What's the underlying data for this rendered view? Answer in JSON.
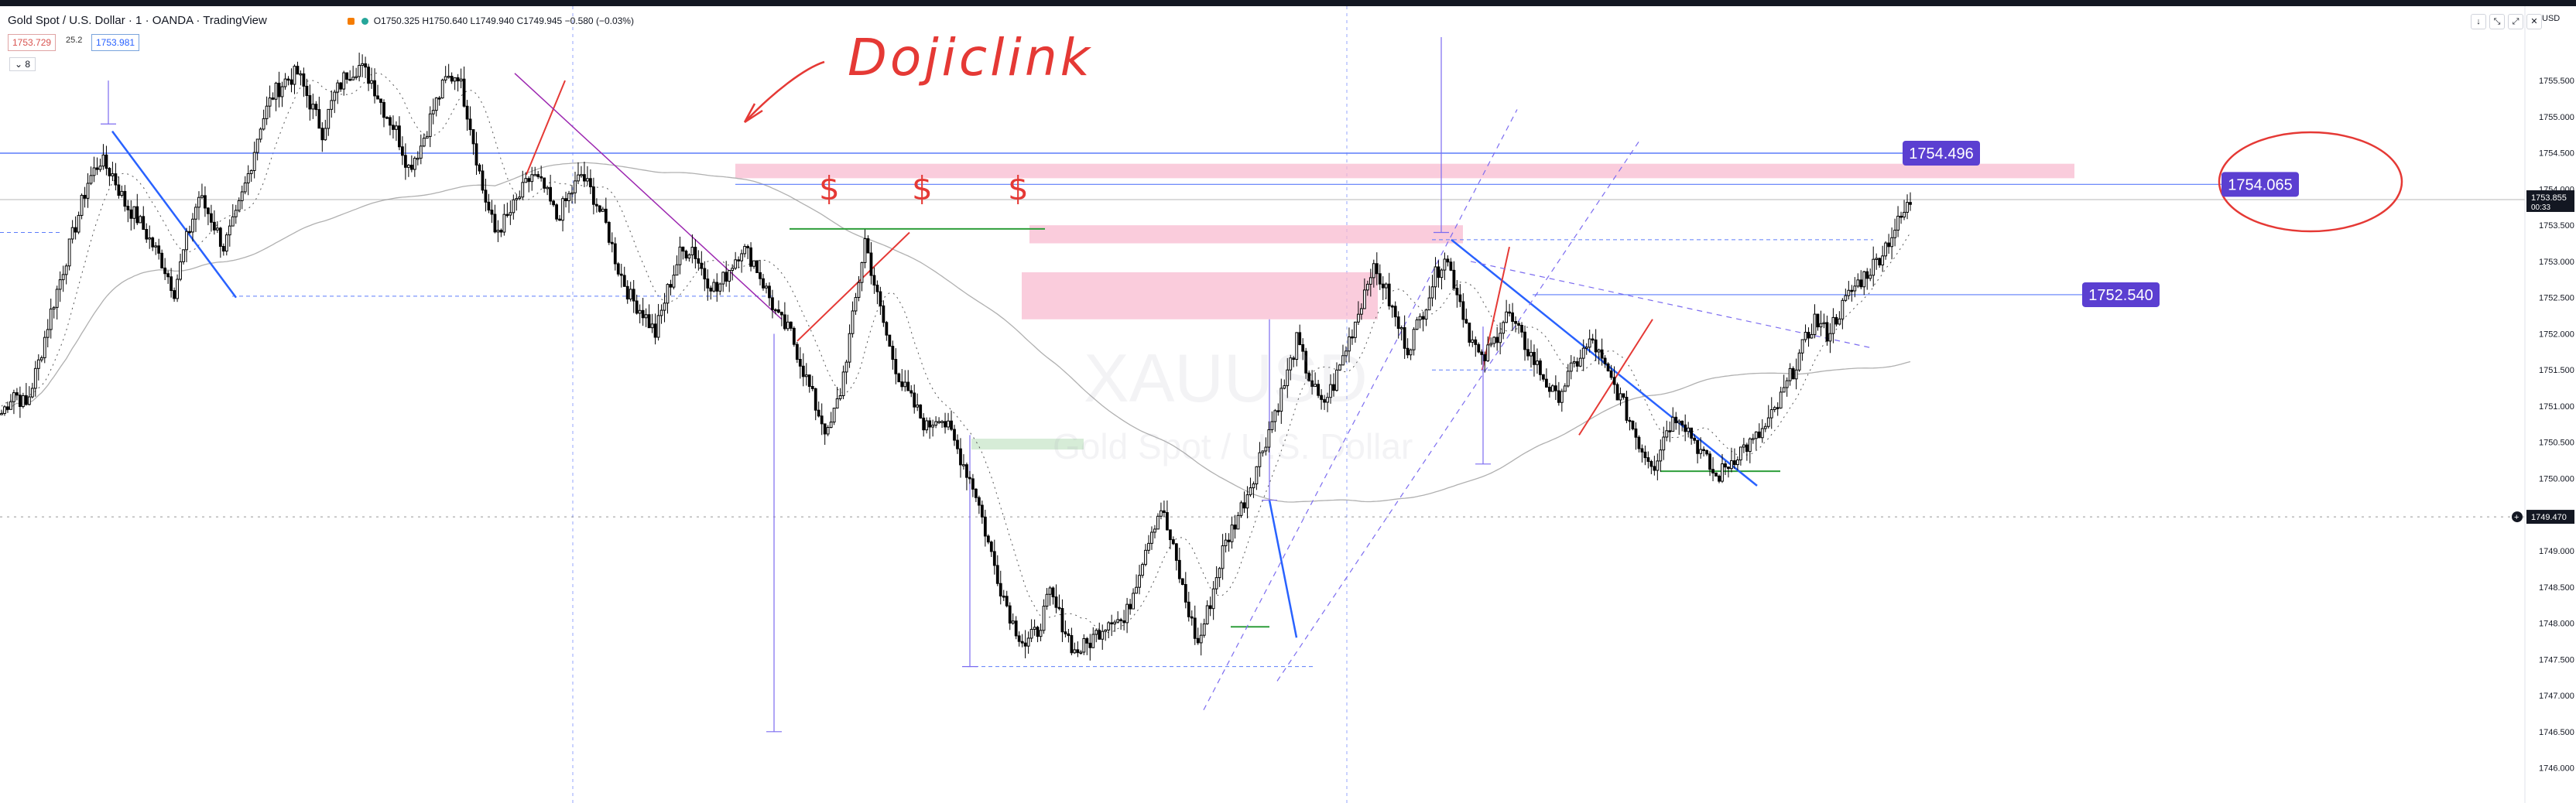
{
  "header": {
    "title": "Gold Spot / U.S. Dollar · 1 · OANDA · TradingView",
    "ohlc": "O1750.325 H1750.640 L1749.940 C1749.945 −0.580 (−0.03%)",
    "bid": "1753.729",
    "spread": "25.2",
    "ask": "1753.981",
    "indicator_count": "8",
    "currency": "USD"
  },
  "window_buttons": [
    "down-arrow-icon",
    "collapse-icon",
    "maximize-icon",
    "close-icon"
  ],
  "watermark": {
    "symbol": "XAUUSD",
    "name": "Gold Spot / U.S. Dollar"
  },
  "annotation": {
    "text": "Dojiclink"
  },
  "colors": {
    "candle": "#000000",
    "grid": "#3d5afe",
    "trend_blue": "#2962ff",
    "trend_red": "#e53935",
    "channel": "#7c6cf0",
    "zone_pink": "#f8bbd0",
    "zone_green": "#c8e6c9",
    "label_purple": "#5b3fd1",
    "ma": "#b0b0b0"
  },
  "chart_data": {
    "type": "candlestick",
    "symbol": "XAUUSD",
    "timeframe": "1",
    "ylim": [
      1745.6,
      1756.1
    ],
    "y_ticks": [
      "1755.500",
      "1755.000",
      "1754.500",
      "1754.000",
      "1753.500",
      "1753.000",
      "1752.500",
      "1752.000",
      "1751.500",
      "1751.000",
      "1750.500",
      "1750.000",
      "1749.500",
      "1749.000",
      "1748.500",
      "1748.000",
      "1747.500",
      "1747.000",
      "1746.500",
      "1746.000"
    ],
    "current_price": "1753.855",
    "countdown": "00:33",
    "crosshair_price": "1749.470",
    "price_labels": [
      {
        "text": "1754.496",
        "value": 1754.496
      },
      {
        "text": "1754.065",
        "value": 1754.065
      },
      {
        "text": "1752.540",
        "value": 1752.54
      }
    ],
    "horizontal_levels": [
      1754.496,
      1754.065,
      1753.4,
      1752.54,
      1750.1
    ],
    "text_marks": [
      "$",
      "$",
      "$"
    ],
    "close_path": [
      1750.9,
      1751.2,
      1751.0,
      1751.6,
      1752.3,
      1752.9,
      1753.5,
      1754.1,
      1754.4,
      1754.2,
      1753.8,
      1753.6,
      1753.3,
      1753.0,
      1752.6,
      1753.3,
      1753.9,
      1753.6,
      1753.2,
      1753.6,
      1754.2,
      1754.9,
      1755.3,
      1755.5,
      1755.6,
      1755.2,
      1754.8,
      1755.3,
      1755.6,
      1755.7,
      1755.5,
      1755.1,
      1754.8,
      1754.3,
      1754.6,
      1755.1,
      1755.5,
      1755.6,
      1754.9,
      1754.0,
      1753.4,
      1753.6,
      1753.9,
      1754.2,
      1754.0,
      1753.6,
      1753.9,
      1754.2,
      1753.9,
      1753.5,
      1752.9,
      1752.5,
      1752.3,
      1752.0,
      1752.6,
      1753.1,
      1753.2,
      1752.8,
      1752.6,
      1752.9,
      1753.2,
      1753.0,
      1752.6,
      1752.2,
      1752.0,
      1751.5,
      1751.0,
      1750.6,
      1751.2,
      1752.2,
      1753.3,
      1752.5,
      1751.8,
      1751.3,
      1751.0,
      1750.7,
      1750.9,
      1750.6,
      1750.2,
      1749.8,
      1749.1,
      1748.5,
      1748.0,
      1747.7,
      1747.9,
      1748.4,
      1748.0,
      1747.6,
      1747.7,
      1747.9,
      1748.1,
      1748.0,
      1748.6,
      1749.2,
      1749.6,
      1749.0,
      1748.3,
      1747.7,
      1748.3,
      1749.0,
      1749.4,
      1749.8,
      1750.3,
      1750.8,
      1751.3,
      1751.9,
      1751.4,
      1751.0,
      1751.3,
      1751.8,
      1752.3,
      1752.9,
      1752.7,
      1752.2,
      1751.8,
      1752.2,
      1752.7,
      1753.1,
      1752.6,
      1752.0,
      1751.6,
      1751.9,
      1752.3,
      1752.0,
      1751.7,
      1751.4,
      1751.1,
      1751.4,
      1751.7,
      1751.9,
      1751.5,
      1751.2,
      1750.8,
      1750.4,
      1750.2,
      1750.7,
      1750.9,
      1750.6,
      1750.3,
      1750.0,
      1750.2,
      1750.4,
      1750.5,
      1750.7,
      1751.0,
      1751.4,
      1751.8,
      1752.2,
      1752.0,
      1752.3,
      1752.6,
      1752.8,
      1753.0,
      1753.3,
      1753.6,
      1753.9
    ]
  }
}
